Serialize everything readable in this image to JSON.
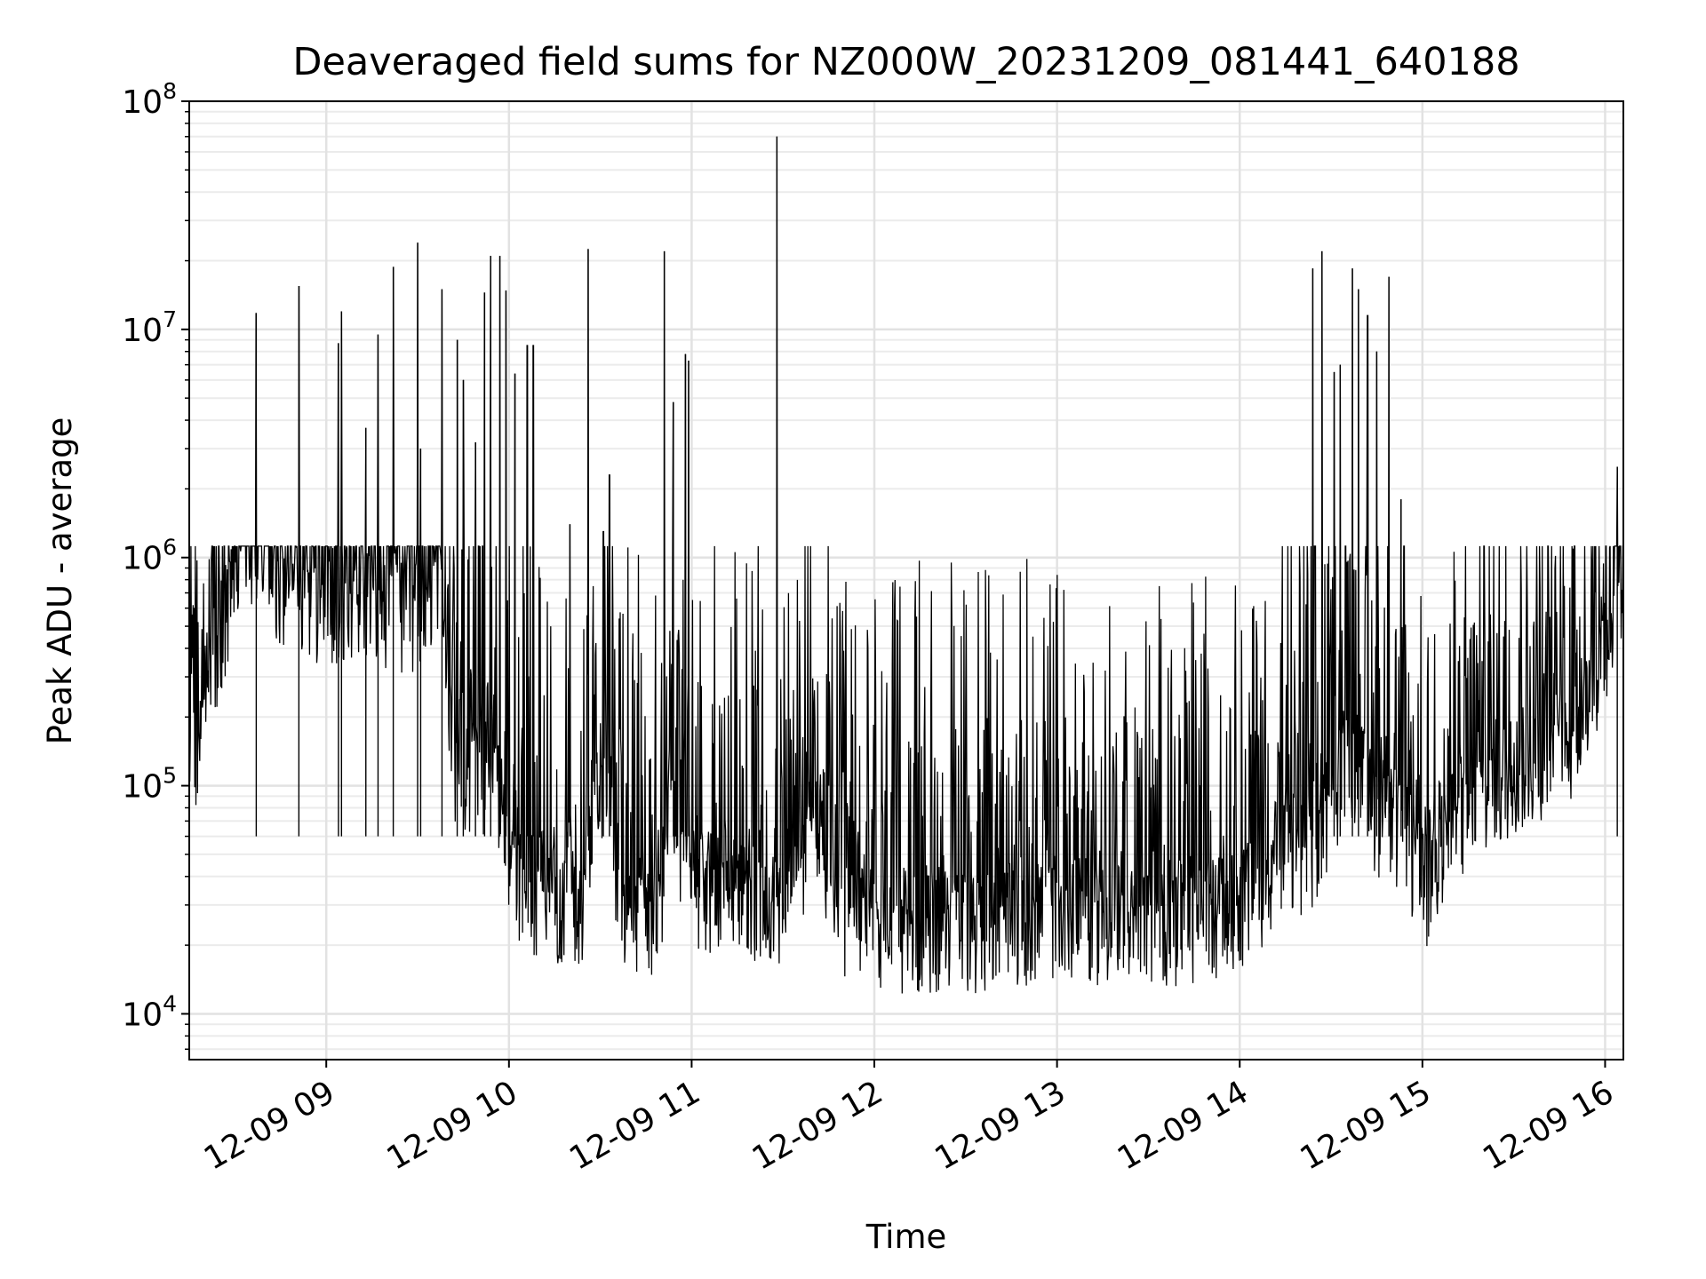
{
  "chart_data": {
    "type": "line",
    "title": "Deaveraged field sums for NZ000W_20231209_081441_640188",
    "xlabel": "Time",
    "ylabel": "Peak ADU - average",
    "y_scale": "log",
    "ylim": [
      6300,
      100000000
    ],
    "xlim": [
      "12-09 08:15",
      "12-09 16:06"
    ],
    "x_ticks": [
      "12-09 09",
      "12-09 10",
      "12-09 11",
      "12-09 12",
      "12-09 13",
      "12-09 14",
      "12-09 15",
      "12-09 16"
    ],
    "y_ticks": [
      {
        "base": "10",
        "exp": "4",
        "value": 10000
      },
      {
        "base": "10",
        "exp": "5",
        "value": 100000
      },
      {
        "base": "10",
        "exp": "6",
        "value": 1000000
      },
      {
        "base": "10",
        "exp": "7",
        "value": 10000000
      },
      {
        "base": "10",
        "exp": "8",
        "value": 100000000
      }
    ],
    "grid": true,
    "legend": "none",
    "line_color": "#000000",
    "baseline_profile": [
      {
        "x": "12-09 08:15",
        "y": 110000
      },
      {
        "x": "12-09 08:22",
        "y": 300000
      },
      {
        "x": "12-09 08:32",
        "y": 1300000
      },
      {
        "x": "12-09 08:45",
        "y": 800000
      },
      {
        "x": "12-09 09:00",
        "y": 650000
      },
      {
        "x": "12-09 09:15",
        "y": 700000
      },
      {
        "x": "12-09 09:30",
        "y": 550000
      },
      {
        "x": "12-09 09:37",
        "y": 1000000
      },
      {
        "x": "12-09 09:42",
        "y": 120000
      },
      {
        "x": "12-09 09:55",
        "y": 120000
      },
      {
        "x": "12-09 10:03",
        "y": 35000
      },
      {
        "x": "12-09 10:25",
        "y": 30000
      },
      {
        "x": "12-09 10:28",
        "y": 120000
      },
      {
        "x": "12-09 10:33",
        "y": 110000
      },
      {
        "x": "12-09 10:36",
        "y": 32000
      },
      {
        "x": "12-09 10:50",
        "y": 28000
      },
      {
        "x": "12-09 10:53",
        "y": 130000
      },
      {
        "x": "12-09 10:58",
        "y": 40000
      },
      {
        "x": "12-09 11:30",
        "y": 28000
      },
      {
        "x": "12-09 11:40",
        "y": 70000
      },
      {
        "x": "12-09 11:50",
        "y": 25000
      },
      {
        "x": "12-09 12:30",
        "y": 24000
      },
      {
        "x": "12-09 13:00",
        "y": 28000
      },
      {
        "x": "12-09 13:30",
        "y": 25000
      },
      {
        "x": "12-09 14:00",
        "y": 30000
      },
      {
        "x": "12-09 14:15",
        "y": 50000
      },
      {
        "x": "12-09 14:27",
        "y": 60000
      },
      {
        "x": "12-09 14:35",
        "y": 150000
      },
      {
        "x": "12-09 14:45",
        "y": 80000
      },
      {
        "x": "12-09 14:55",
        "y": 60000
      },
      {
        "x": "12-09 15:00",
        "y": 35000
      },
      {
        "x": "12-09 15:10",
        "y": 70000
      },
      {
        "x": "12-09 15:30",
        "y": 120000
      },
      {
        "x": "12-09 15:50",
        "y": 170000
      },
      {
        "x": "12-09 16:06",
        "y": 800000
      }
    ],
    "spikes": [
      {
        "x": "12-09 08:37",
        "y": 11800000
      },
      {
        "x": "12-09 08:51",
        "y": 15500000
      },
      {
        "x": "12-09 09:05",
        "y": 12000000
      },
      {
        "x": "12-09 09:04",
        "y": 8700000
      },
      {
        "x": "12-09 09:13",
        "y": 3700000
      },
      {
        "x": "12-09 09:17",
        "y": 9500000
      },
      {
        "x": "12-09 09:22",
        "y": 18800000
      },
      {
        "x": "12-09 09:30",
        "y": 24000000
      },
      {
        "x": "12-09 09:31",
        "y": 3000000
      },
      {
        "x": "12-09 09:38",
        "y": 15000000
      },
      {
        "x": "12-09 09:43",
        "y": 9000000
      },
      {
        "x": "12-09 09:45",
        "y": 6000000
      },
      {
        "x": "12-09 09:49",
        "y": 3200000
      },
      {
        "x": "12-09 09:52",
        "y": 14500000
      },
      {
        "x": "12-09 09:54",
        "y": 21000000
      },
      {
        "x": "12-09 09:57",
        "y": 21000000
      },
      {
        "x": "12-09 09:59",
        "y": 14800000
      },
      {
        "x": "12-09 10:02",
        "y": 6400000
      },
      {
        "x": "12-09 10:06",
        "y": 8500000
      },
      {
        "x": "12-09 10:08",
        "y": 8500000
      },
      {
        "x": "12-09 10:20",
        "y": 1400000
      },
      {
        "x": "12-09 10:26",
        "y": 22500000
      },
      {
        "x": "12-09 10:31",
        "y": 1300000
      },
      {
        "x": "12-09 10:33",
        "y": 2300000
      },
      {
        "x": "12-09 10:51",
        "y": 22000000
      },
      {
        "x": "12-09 10:54",
        "y": 4800000
      },
      {
        "x": "12-09 10:58",
        "y": 7800000
      },
      {
        "x": "12-09 10:59",
        "y": 7300000
      },
      {
        "x": "12-09 11:28",
        "y": 70000000
      },
      {
        "x": "12-09 14:24",
        "y": 18500000
      },
      {
        "x": "12-09 14:27",
        "y": 22000000
      },
      {
        "x": "12-09 14:31",
        "y": 6500000
      },
      {
        "x": "12-09 14:33",
        "y": 7000000
      },
      {
        "x": "12-09 14:37",
        "y": 18500000
      },
      {
        "x": "12-09 14:39",
        "y": 15000000
      },
      {
        "x": "12-09 14:42",
        "y": 11500000
      },
      {
        "x": "12-09 14:45",
        "y": 8000000
      },
      {
        "x": "12-09 14:49",
        "y": 17000000
      },
      {
        "x": "12-09 14:53",
        "y": 1800000
      },
      {
        "x": "12-09 16:04",
        "y": 2500000
      }
    ]
  }
}
